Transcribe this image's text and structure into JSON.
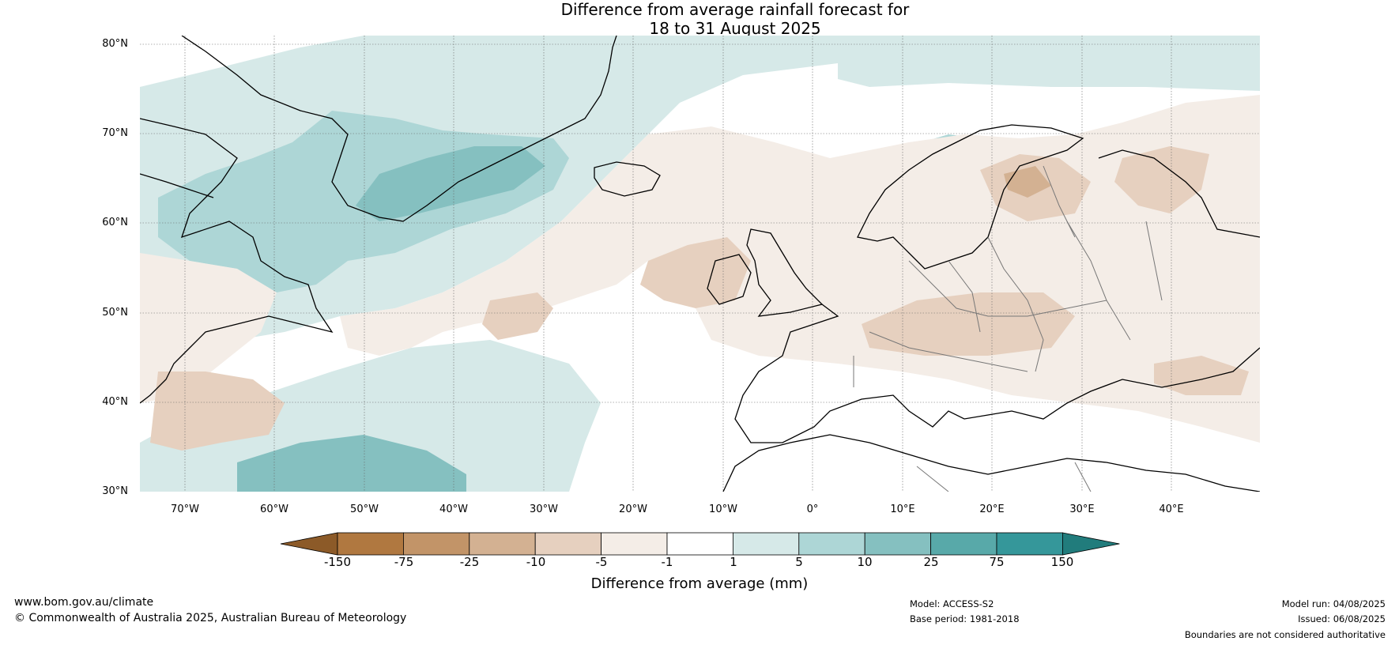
{
  "title_line1": "Difference from average rainfall forecast for",
  "title_line2": "18 to 31 August 2025",
  "lat_labels": [
    "80°N",
    "70°N",
    "60°N",
    "50°N",
    "40°N",
    "30°N"
  ],
  "lon_labels": [
    "70°W",
    "60°W",
    "50°W",
    "40°W",
    "30°W",
    "20°W",
    "10°W",
    "0°",
    "10°E",
    "20°E",
    "30°E",
    "40°E"
  ],
  "colorbar": {
    "title": "Difference from average (mm)",
    "tick_labels": [
      "-150",
      "-75",
      "-25",
      "-10",
      "-5",
      "-1",
      "1",
      "5",
      "10",
      "25",
      "75",
      "150"
    ],
    "colors": [
      "#8c5a28",
      "#b07840",
      "#c29468",
      "#d3b192",
      "#e6d0bf",
      "#f4ede7",
      "#ffffff",
      "#d6e9e8",
      "#add6d6",
      "#85c0c0",
      "#58a9a9",
      "#35979a",
      "#217c7c"
    ]
  },
  "footer": {
    "website": "www.bom.gov.au/climate",
    "copyright": "© Commonwealth of Australia 2025, Australian Bureau of Meteorology",
    "model": "Model: ACCESS-S2",
    "base_period": "Base period: 1981-2018",
    "model_run": "Model run: 04/08/2025",
    "issued": "Issued: 06/08/2025",
    "disclaimer": "Boundaries are not considered authoritative"
  }
}
